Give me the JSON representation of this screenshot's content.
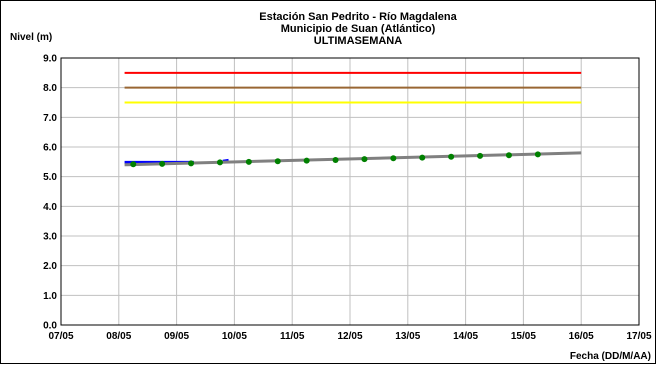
{
  "chart_data": {
    "type": "line",
    "title_lines": [
      "Estación San Pedrito - Río Magdalena",
      "Municipio de Suan (Atlántico)",
      "ULTIMASEMANA"
    ],
    "ylabel": "Nivel (m)",
    "xlabel": "Fecha (DD/M/AA)",
    "ylim": [
      0,
      9
    ],
    "y_ticks": [
      "0.0",
      "1.0",
      "2.0",
      "3.0",
      "4.0",
      "5.0",
      "6.0",
      "7.0",
      "8.0",
      "9.0"
    ],
    "x_ticks": [
      "07/05",
      "08/05",
      "09/05",
      "10/05",
      "11/05",
      "12/05",
      "13/05",
      "14/05",
      "15/05",
      "16/05",
      "17/05"
    ],
    "xlim_days": [
      7,
      17
    ],
    "grid": true,
    "thresholds": [
      {
        "level": 8.5,
        "color": "#ff0000",
        "from_day": 8.1,
        "to_day": 16.0
      },
      {
        "level": 8.0,
        "color": "#996633",
        "from_day": 8.1,
        "to_day": 16.0
      },
      {
        "level": 7.5,
        "color": "#ffff00",
        "from_day": 8.1,
        "to_day": 16.0
      }
    ],
    "series": [
      {
        "style": "observed",
        "color": "#0000ff",
        "x": [
          8.1,
          8.5,
          9.0,
          9.3
        ],
        "y": [
          5.48,
          5.48,
          5.48,
          5.48
        ]
      },
      {
        "style": "observed-end",
        "color": "#0000ff",
        "x": [
          9.8,
          9.9
        ],
        "y": [
          5.52,
          5.55
        ]
      },
      {
        "style": "forecast",
        "color": "#808080",
        "x": [
          8.1,
          16.0
        ],
        "y": [
          5.4,
          5.8
        ]
      },
      {
        "style": "points",
        "color": "#008000",
        "x": [
          8.25,
          8.75,
          9.25,
          9.75,
          10.25,
          10.75,
          11.25,
          11.75,
          12.25,
          12.75,
          13.25,
          13.75,
          14.25,
          14.75,
          15.25
        ],
        "y": [
          5.42,
          5.43,
          5.45,
          5.48,
          5.5,
          5.52,
          5.54,
          5.56,
          5.59,
          5.62,
          5.64,
          5.67,
          5.7,
          5.72,
          5.75
        ]
      }
    ]
  }
}
